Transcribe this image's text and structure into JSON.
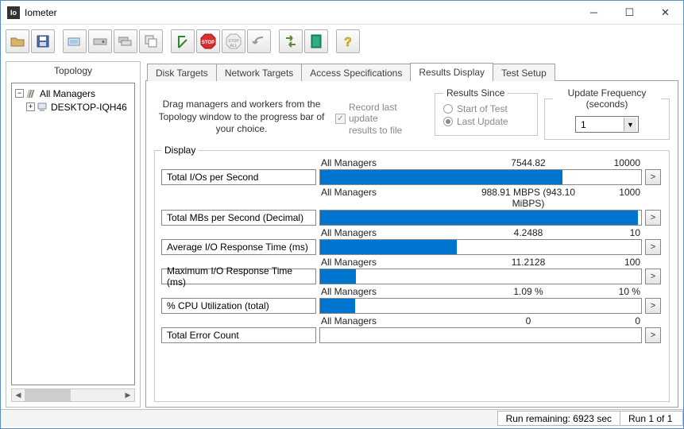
{
  "window": {
    "title": "Iometer"
  },
  "toolbar_icons": [
    "open",
    "save",
    "monitor",
    "disk",
    "disks",
    "copy",
    "flag",
    "stop",
    "stop-all",
    "undo",
    "swap",
    "book",
    "help"
  ],
  "topology": {
    "title": "Topology",
    "root_label": "All Managers",
    "child_label": "DESKTOP-IQH46"
  },
  "tabs": [
    "Disk Targets",
    "Network Targets",
    "Access Specifications",
    "Results Display",
    "Test Setup"
  ],
  "active_tab": 3,
  "instructions": "Drag managers and workers from the Topology window to the progress bar of your choice.",
  "record_checkbox_label": "Record last update results to file",
  "results_since": {
    "legend": "Results Since",
    "opt1": "Start of Test",
    "opt2": "Last Update",
    "selected": 1
  },
  "update_freq": {
    "legend": "Update Frequency (seconds)",
    "value": "1"
  },
  "display_legend": "Display",
  "metrics": [
    {
      "label": "Total I/Os per Second",
      "manager": "All Managers",
      "value": "7544.82",
      "max": "10000",
      "fill_pct": 75.4
    },
    {
      "label": "Total MBs per Second (Decimal)",
      "manager": "All Managers",
      "value": "988.91 MBPS (943.10 MiBPS)",
      "max": "1000",
      "fill_pct": 98.9
    },
    {
      "label": "Average I/O Response Time (ms)",
      "manager": "All Managers",
      "value": "4.2488",
      "max": "10",
      "fill_pct": 42.5
    },
    {
      "label": "Maximum I/O Response Time (ms)",
      "manager": "All Managers",
      "value": "11.2128",
      "max": "100",
      "fill_pct": 11.2
    },
    {
      "label": "% CPU Utilization (total)",
      "manager": "All Managers",
      "value": "1.09 %",
      "max": "10 %",
      "fill_pct": 10.9
    },
    {
      "label": "Total Error Count",
      "manager": "All Managers",
      "value": "0",
      "max": "0",
      "fill_pct": 0
    }
  ],
  "status": {
    "run_remaining": "Run remaining: 6923 sec",
    "run_count": "Run 1 of 1"
  },
  "colors": {
    "bar_fill": "#0075d0",
    "border": "#888888"
  }
}
